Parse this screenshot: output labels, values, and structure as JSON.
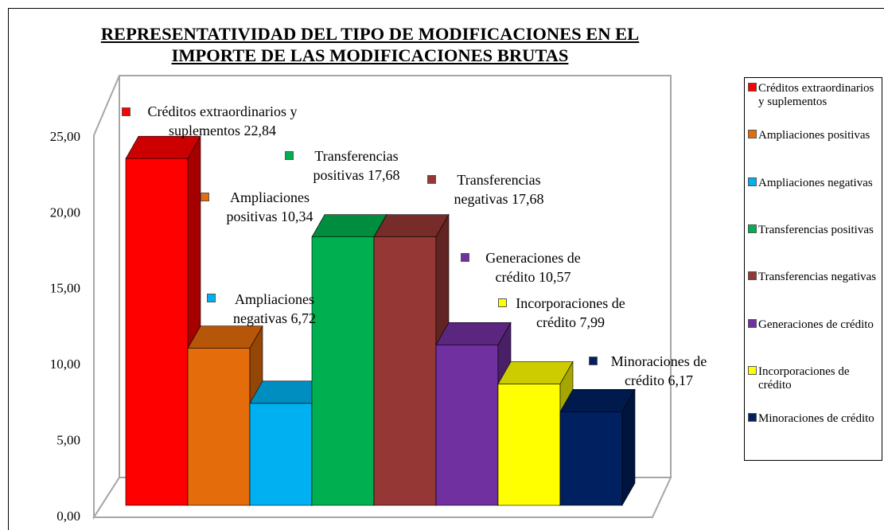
{
  "chart_data": {
    "type": "bar",
    "title": [
      "REPRESENTATIVIDAD DEL TIPO DE MODIFICACIONES EN EL",
      "IMPORTE DE LAS MODIFICACIONES BRUTAS"
    ],
    "categories": [
      "Créditos extraordinarios y suplementos",
      "Ampliaciones positivas",
      "Ampliaciones negativas",
      "Transferencias positivas",
      "Transferencias negativas",
      "Generaciones de crédito",
      "Incorporaciones de crédito",
      "Minoraciones de crédito"
    ],
    "values": [
      22.84,
      10.34,
      6.72,
      17.68,
      17.68,
      10.57,
      7.99,
      6.17
    ],
    "value_labels": [
      "22,84",
      "10,34",
      "6,72",
      "17,68",
      "17,68",
      "10,57",
      "7,99",
      "6,17"
    ],
    "colors": [
      "#ff0000",
      "#e46c0a",
      "#00b0f0",
      "#00b050",
      "#953735",
      "#7030a0",
      "#ffff00",
      "#002060"
    ],
    "ylim": [
      0,
      25
    ],
    "yticks": [
      {
        "value": 0,
        "label": "0,00"
      },
      {
        "value": 5,
        "label": "5,00"
      },
      {
        "value": 10,
        "label": "10,00"
      },
      {
        "value": 15,
        "label": "15,00"
      },
      {
        "value": 20,
        "label": "20,00"
      },
      {
        "value": 25,
        "label": "25,00"
      }
    ],
    "grid": false,
    "legend": "right"
  }
}
